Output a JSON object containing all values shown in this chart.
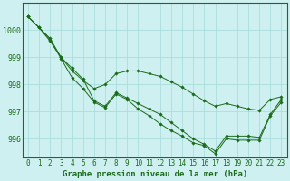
{
  "title": "Graphe pression niveau de la mer (hPa)",
  "background_color": "#cff0f0",
  "grid_color": "#aadddd",
  "line_color": "#1a6b1a",
  "x_labels": [
    "0",
    "1",
    "2",
    "3",
    "4",
    "5",
    "6",
    "7",
    "8",
    "9",
    "10",
    "11",
    "12",
    "13",
    "14",
    "15",
    "16",
    "17",
    "18",
    "19",
    "20",
    "21",
    "22",
    "23"
  ],
  "hours": [
    0,
    1,
    2,
    3,
    4,
    5,
    6,
    7,
    8,
    9,
    10,
    11,
    12,
    13,
    14,
    15,
    16,
    17,
    18,
    19,
    20,
    21,
    22,
    23
  ],
  "series1": [
    1000.5,
    1000.1,
    999.7,
    999.0,
    998.6,
    998.2,
    997.4,
    997.2,
    997.7,
    997.5,
    997.3,
    997.1,
    996.9,
    996.6,
    996.3,
    996.0,
    995.8,
    995.55,
    996.1,
    996.1,
    996.1,
    996.05,
    996.9,
    997.45
  ],
  "series2": [
    1000.5,
    1000.1,
    999.65,
    998.95,
    998.25,
    997.85,
    997.35,
    997.15,
    997.65,
    997.45,
    997.1,
    996.85,
    996.55,
    996.3,
    996.1,
    995.85,
    995.75,
    995.45,
    996.0,
    995.95,
    995.95,
    995.95,
    996.85,
    997.35
  ],
  "series3": [
    1000.5,
    1000.1,
    999.6,
    999.0,
    998.5,
    998.15,
    997.85,
    998.0,
    998.4,
    998.5,
    998.5,
    998.4,
    998.3,
    998.1,
    997.9,
    997.65,
    997.4,
    997.2,
    997.3,
    997.2,
    997.1,
    997.05,
    997.45,
    997.55
  ],
  "ylim": [
    995.3,
    1001.0
  ],
  "yticks": [
    996,
    997,
    998,
    999,
    1000
  ],
  "ylabel_fontsize": 6,
  "xlabel_fontsize": 5.5,
  "title_fontsize": 6.5,
  "marker": "D",
  "marker_size": 1.8,
  "line_width": 0.7
}
